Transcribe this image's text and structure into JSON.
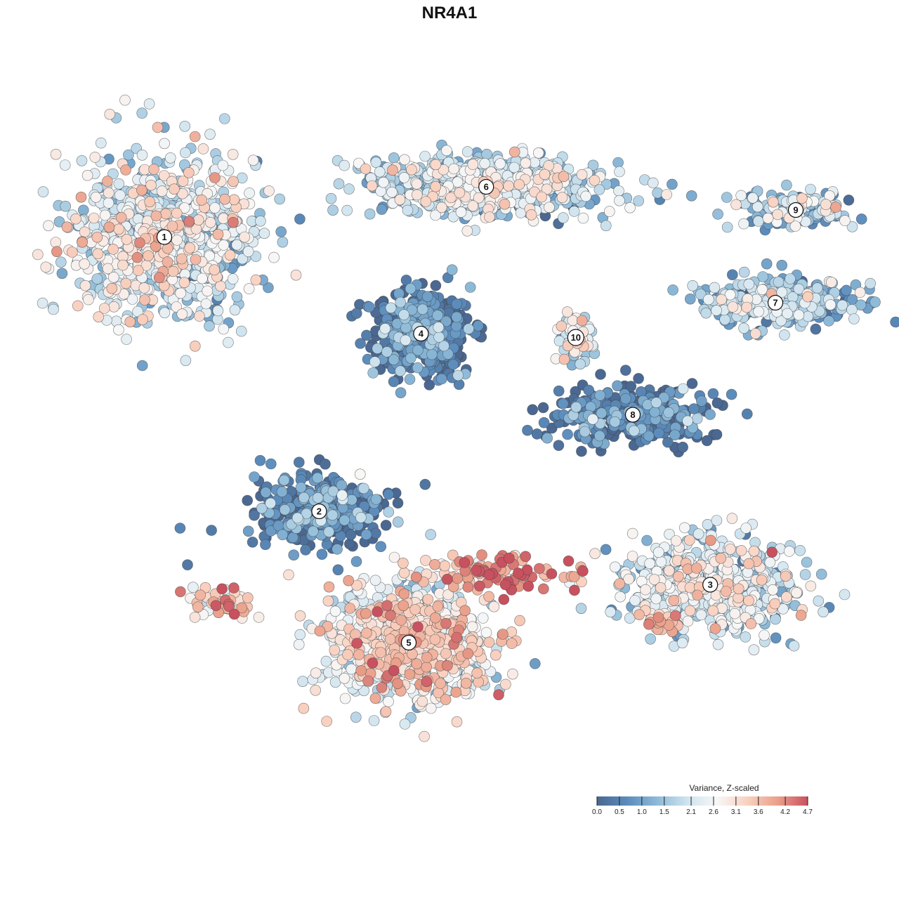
{
  "chart_data": {
    "type": "scatter",
    "title": "NR4A1",
    "xlabel": "",
    "ylabel": "",
    "grid": false,
    "legend_placement": "bottom-right",
    "legend": {
      "title": "Variance, Z-scaled",
      "ticks": [
        "0.0",
        "0.5",
        "1.0",
        "1.5",
        "2.1",
        "2.6",
        "3.1",
        "3.6",
        "4.2",
        "4.7"
      ],
      "range": [
        0.0,
        4.7
      ],
      "colors": [
        "#4a6891",
        "#5b8cbc",
        "#8dbad8",
        "#cfe4ef",
        "#f7f7f7",
        "#f9d0bf",
        "#eaa08a",
        "#c8515f"
      ]
    },
    "clusters": [
      {
        "id": "1",
        "x": -7.0,
        "y": 5.5,
        "spread_x": 2.0,
        "spread_y": 2.0,
        "mean_value": 2.2,
        "n": 900
      },
      {
        "id": "2",
        "x": -3.2,
        "y": -1.6,
        "spread_x": 1.5,
        "spread_y": 0.9,
        "mean_value": 0.4,
        "n": 380
      },
      {
        "id": "3",
        "x": 6.4,
        "y": -3.5,
        "spread_x": 1.9,
        "spread_y": 1.1,
        "mean_value": 2.0,
        "n": 650
      },
      {
        "id": "4",
        "x": -0.7,
        "y": 3.0,
        "spread_x": 1.1,
        "spread_y": 1.0,
        "mean_value": 0.3,
        "n": 420
      },
      {
        "id": "5",
        "x": -1.0,
        "y": -5.0,
        "spread_x": 1.8,
        "spread_y": 1.3,
        "mean_value": 2.7,
        "n": 900
      },
      {
        "id": "6",
        "x": 0.9,
        "y": 6.8,
        "spread_x": 2.6,
        "spread_y": 0.7,
        "mean_value": 1.8,
        "n": 700
      },
      {
        "id": "7",
        "x": 8.0,
        "y": 3.8,
        "spread_x": 1.8,
        "spread_y": 0.6,
        "mean_value": 1.3,
        "n": 320
      },
      {
        "id": "8",
        "x": 4.5,
        "y": 0.9,
        "spread_x": 1.7,
        "spread_y": 0.7,
        "mean_value": 0.2,
        "n": 340
      },
      {
        "id": "9",
        "x": 8.5,
        "y": 6.2,
        "spread_x": 1.3,
        "spread_y": 0.4,
        "mean_value": 1.6,
        "n": 160
      },
      {
        "id": "10",
        "x": 3.1,
        "y": 2.9,
        "spread_x": 0.4,
        "spread_y": 0.5,
        "mean_value": 2.1,
        "n": 80
      }
    ],
    "extra_groups": [
      {
        "x": -5.5,
        "y": -4.0,
        "spread_x": 0.7,
        "spread_y": 0.35,
        "mean_value": 3.3,
        "n": 45
      },
      {
        "x": 1.2,
        "y": -3.2,
        "spread_x": 1.5,
        "spread_y": 0.45,
        "mean_value": 4.2,
        "n": 90
      },
      {
        "x": 5.2,
        "y": -4.5,
        "spread_x": 0.5,
        "spread_y": 0.3,
        "mean_value": 3.6,
        "n": 30
      }
    ]
  },
  "colors": {
    "low": "#4a6891",
    "high": "#c8515f",
    "stroke": "#444444"
  }
}
